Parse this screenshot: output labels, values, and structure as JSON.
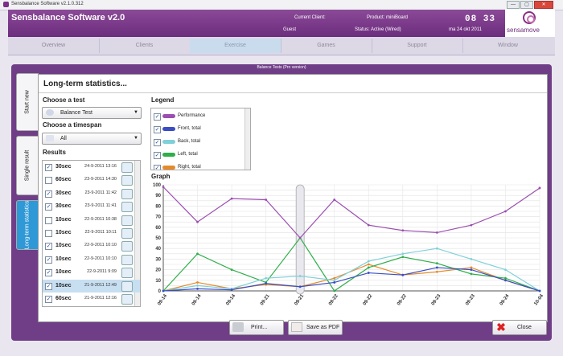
{
  "window": {
    "title": "Sensbalance Software v2.1.0.312",
    "min": "—",
    "max": "▢",
    "close": "✕"
  },
  "header": {
    "app_name": "Sensbalance Software v2.0",
    "current_client_label": "Current Client:",
    "client": "Guest",
    "product_label": "Product: miniBoard",
    "status": "Status: Active (Wired)",
    "clock": "08 33",
    "date": "ma 24 okt 2011",
    "logo_text": "sensamove"
  },
  "tabs": [
    "Overview",
    "Clients",
    "Exercise",
    "Games",
    "Support",
    "Window"
  ],
  "main_title": "Balance Tests (Pro version)",
  "side_tabs": [
    "Start new",
    "Single result",
    "Long-term statistics"
  ],
  "panel": {
    "title": "Long-term statistics...",
    "choose_test_label": "Choose a test",
    "test_value": "Balance Test",
    "choose_timespan_label": "Choose a timespan",
    "timespan_value": "All",
    "results_label": "Results",
    "legend_label": "Legend",
    "graph_label": "Graph"
  },
  "results": [
    {
      "checked": true,
      "dur": "30sec",
      "date": "24-9-2011 13:16",
      "sel": false
    },
    {
      "checked": false,
      "dur": "60sec",
      "date": "23-9-2011 14:30",
      "sel": false
    },
    {
      "checked": true,
      "dur": "30sec",
      "date": "23-9-2011 11:42",
      "sel": false
    },
    {
      "checked": true,
      "dur": "30sec",
      "date": "23-9-2011 11:41",
      "sel": false
    },
    {
      "checked": false,
      "dur": "10sec",
      "date": "22-9-2011 10:38",
      "sel": false
    },
    {
      "checked": false,
      "dur": "10sec",
      "date": "22-9-2011 10:11",
      "sel": false
    },
    {
      "checked": true,
      "dur": "10sec",
      "date": "22-9-2011 10:10",
      "sel": false
    },
    {
      "checked": true,
      "dur": "10sec",
      "date": "22-9-2011 10:10",
      "sel": false
    },
    {
      "checked": true,
      "dur": "10sec",
      "date": "22-9-2011 9:09",
      "sel": false
    },
    {
      "checked": true,
      "dur": "10sec",
      "date": "21-9-2011 12:49",
      "sel": true
    },
    {
      "checked": true,
      "dur": "60sec",
      "date": "21-9-2011 12:16",
      "sel": false
    }
  ],
  "legend": [
    {
      "name": "Performance",
      "color": "#9b4fb0"
    },
    {
      "name": "Front, total",
      "color": "#3a4ec4"
    },
    {
      "name": "Back, total",
      "color": "#7fd0d8"
    },
    {
      "name": "Left, total",
      "color": "#2fae4a"
    },
    {
      "name": "Right, total",
      "color": "#e58a2a"
    }
  ],
  "chart_data": {
    "type": "line",
    "x": [
      "09-14",
      "09-14",
      "09-14",
      "09-21",
      "09-21",
      "09-22",
      "09-22",
      "09-22",
      "09-23",
      "09-23",
      "09-24",
      "10-04"
    ],
    "yticks": [
      "0",
      "10",
      "20",
      "30",
      "40",
      "50",
      "60",
      "70",
      "80",
      "90",
      "100"
    ],
    "ylim": [
      0,
      100
    ],
    "series": [
      {
        "name": "Performance",
        "color": "#9b4fb0",
        "values": [
          98,
          65,
          87,
          86,
          50,
          86,
          62,
          57,
          55,
          62,
          75,
          97
        ]
      },
      {
        "name": "Front, total",
        "color": "#3a4ec4",
        "values": [
          0,
          2,
          1,
          7,
          4,
          8,
          17,
          15,
          22,
          20,
          10,
          0
        ]
      },
      {
        "name": "Back, total",
        "color": "#7fd0d8",
        "values": [
          0,
          5,
          2,
          12,
          14,
          10,
          28,
          35,
          40,
          30,
          20,
          0
        ]
      },
      {
        "name": "Left, total",
        "color": "#2fae4a",
        "values": [
          0,
          35,
          20,
          8,
          50,
          0,
          22,
          32,
          26,
          16,
          12,
          0
        ]
      },
      {
        "name": "Right, total",
        "color": "#e58a2a",
        "values": [
          0,
          8,
          2,
          6,
          4,
          12,
          25,
          15,
          18,
          22,
          10,
          0
        ]
      }
    ]
  },
  "buttons": {
    "print": "Print...",
    "save_pdf": "Save as PDF",
    "close": "Close"
  }
}
